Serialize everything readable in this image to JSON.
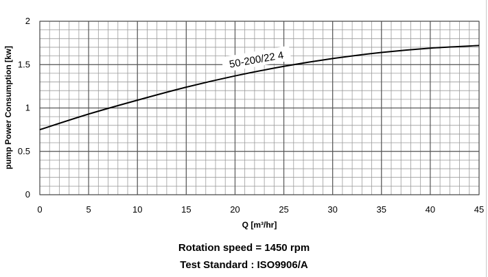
{
  "chart_data": {
    "type": "line",
    "xlabel": "Q [m³/hr]",
    "ylabel": "pump Power Consumption  [kw]",
    "xlim": [
      0,
      45
    ],
    "ylim": [
      0,
      2
    ],
    "x_ticks": [
      "0",
      "5",
      "10",
      "15",
      "20",
      "25",
      "30",
      "35",
      "40",
      "45"
    ],
    "y_ticks": [
      "0",
      "0.5",
      "1",
      "1.5",
      "2"
    ],
    "grid": true,
    "minor_grid": true,
    "series": [
      {
        "name": "50-200/22  4",
        "x": [
          0,
          5,
          10,
          15,
          20,
          25,
          30,
          35,
          40,
          45
        ],
        "y": [
          0.75,
          0.93,
          1.09,
          1.24,
          1.37,
          1.48,
          1.57,
          1.64,
          1.69,
          1.72
        ],
        "color": "#000000"
      }
    ]
  },
  "captions": {
    "line1": "Rotation speed = 1450 rpm",
    "line2": "Test Standard : ISO9906/A"
  }
}
